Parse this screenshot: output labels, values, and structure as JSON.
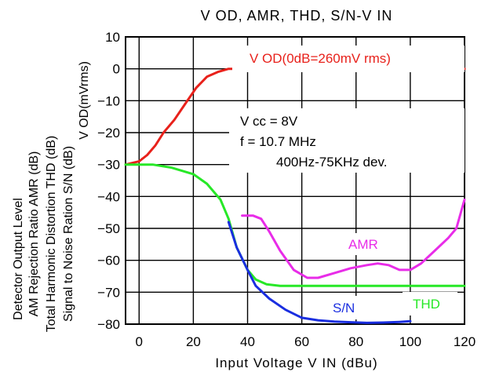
{
  "chart_data": {
    "type": "line",
    "title": "V OD, AMR, THD, S/N-V IN",
    "xlabel": "Input Voltage V IN (dBu)",
    "ylabels": [
      "Detector Output Level",
      "AM Rejection Ratio AMR (dB)",
      "Total Harmonic Distortion THD (dB)",
      "Signal to Noise Ration S/N (dB)"
    ],
    "vod_axis_label": "V OD(mVrms)",
    "xlim": [
      -5,
      120
    ],
    "ylim": [
      -80,
      10
    ],
    "x_ticks": [
      "0",
      "20",
      "40",
      "60",
      "80",
      "100",
      "120"
    ],
    "y_ticks": [
      "10",
      "0",
      "−10",
      "−20",
      "−30",
      "−40",
      "−50",
      "−60",
      "−70",
      "−80"
    ],
    "grid": true,
    "colors": {
      "vod": "#e8211b",
      "amr": "#e82ce8",
      "thd": "#27e827",
      "sn": "#1a2ee0"
    },
    "series": [
      {
        "name": "V OD(0dB=260mV rms)",
        "label": "V OD(0dB=260mV rms)",
        "color_key": "vod",
        "x": [
          -5,
          0,
          3,
          6,
          9,
          13,
          17,
          21,
          25,
          29,
          33,
          37
        ],
        "y": [
          -30,
          -29,
          -27,
          -24,
          -20,
          -16,
          -11,
          -6,
          -2.5,
          -1,
          0,
          0
        ]
      },
      {
        "name": "V OD tail",
        "label": "",
        "color_key": "vod",
        "x": [
          115,
          120
        ],
        "y": [
          0,
          0
        ]
      },
      {
        "name": "AMR",
        "label": "AMR",
        "color_key": "amr",
        "x": [
          38,
          42,
          45,
          48,
          52,
          57,
          62,
          66,
          72,
          78,
          84,
          88,
          92,
          96,
          100,
          104,
          109,
          114,
          117,
          120
        ],
        "y": [
          -46,
          -46,
          -47,
          -51,
          -57,
          -63,
          -65.5,
          -65.5,
          -64,
          -62.5,
          -61.5,
          -61,
          -61.5,
          -63,
          -63,
          -61,
          -57,
          -53,
          -50,
          -41
        ]
      },
      {
        "name": "THD",
        "label": "THD",
        "color_key": "thd",
        "x": [
          -5,
          5,
          12,
          20,
          25,
          30,
          33,
          36,
          40,
          43,
          47,
          52,
          60,
          80,
          100,
          120
        ],
        "y": [
          -30,
          -30,
          -31,
          -33,
          -36,
          -41,
          -47,
          -56,
          -63,
          -66,
          -67.5,
          -68,
          -68,
          -68,
          -68,
          -68
        ]
      },
      {
        "name": "S/N",
        "label": "S/N",
        "color_key": "sn",
        "x": [
          33,
          36,
          40,
          43,
          48,
          54,
          60,
          66,
          72,
          78,
          84,
          90,
          96,
          100
        ],
        "y": [
          -48,
          -56,
          -63,
          -68,
          -72,
          -75.5,
          -78,
          -78.8,
          -79.2,
          -79.4,
          -79.6,
          -79.5,
          -79.3,
          -79.1
        ]
      }
    ],
    "annotations": {
      "conditions": [
        "V cc = 8V",
        "f = 10.7 MHz",
        "400Hz-75KHz dev."
      ]
    }
  }
}
